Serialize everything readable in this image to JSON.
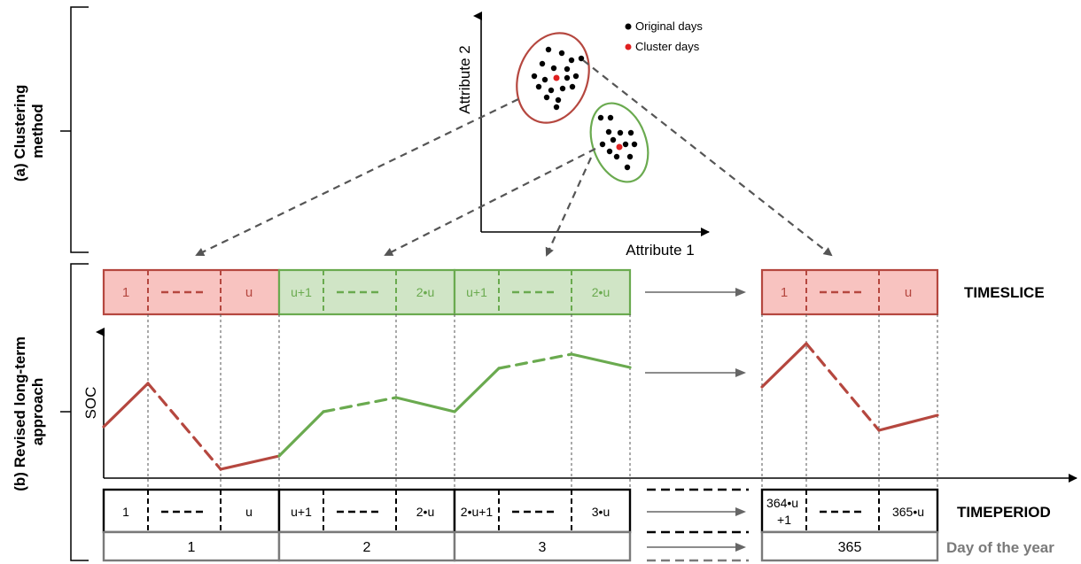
{
  "section_labels": {
    "a_line1": "(a) Clustering",
    "a_line2": "method",
    "b_line1": "(b) Revised long-term",
    "b_line2": "approach"
  },
  "scatter": {
    "x_axis_label": "Attribute 1",
    "y_axis_label": "Attribute 2",
    "legend": {
      "original": "Original days",
      "cluster": "Cluster days"
    }
  },
  "soc_label": "SOC",
  "timeslice": {
    "title": "TIMESLICE",
    "blocks": [
      {
        "first": "1",
        "last": "u"
      },
      {
        "first": "u+1",
        "last": "2•u"
      },
      {
        "first": "u+1",
        "last": "2•u"
      },
      {
        "first": "1",
        "last": "u"
      }
    ]
  },
  "timeperiod": {
    "title": "TIMEPERIOD",
    "blocks": [
      {
        "first": "1",
        "last": "u"
      },
      {
        "first": "u+1",
        "last": "2•u"
      },
      {
        "first": "2•u+1",
        "last": "3•u"
      },
      {
        "first_line1": "364•u",
        "first_line2": "+1",
        "last": "365•u"
      }
    ]
  },
  "day_of_year": {
    "title": "Day of the year",
    "days": [
      "1",
      "2",
      "3",
      "365"
    ]
  },
  "colors": {
    "red_stroke": "#b5473f",
    "red_fill": "#f8c3c0",
    "green_stroke": "#6aaa4f",
    "green_fill": "#d0e5c6",
    "arrow_gray": "#6f6f6f",
    "day_gray": "#7a7a7a"
  }
}
